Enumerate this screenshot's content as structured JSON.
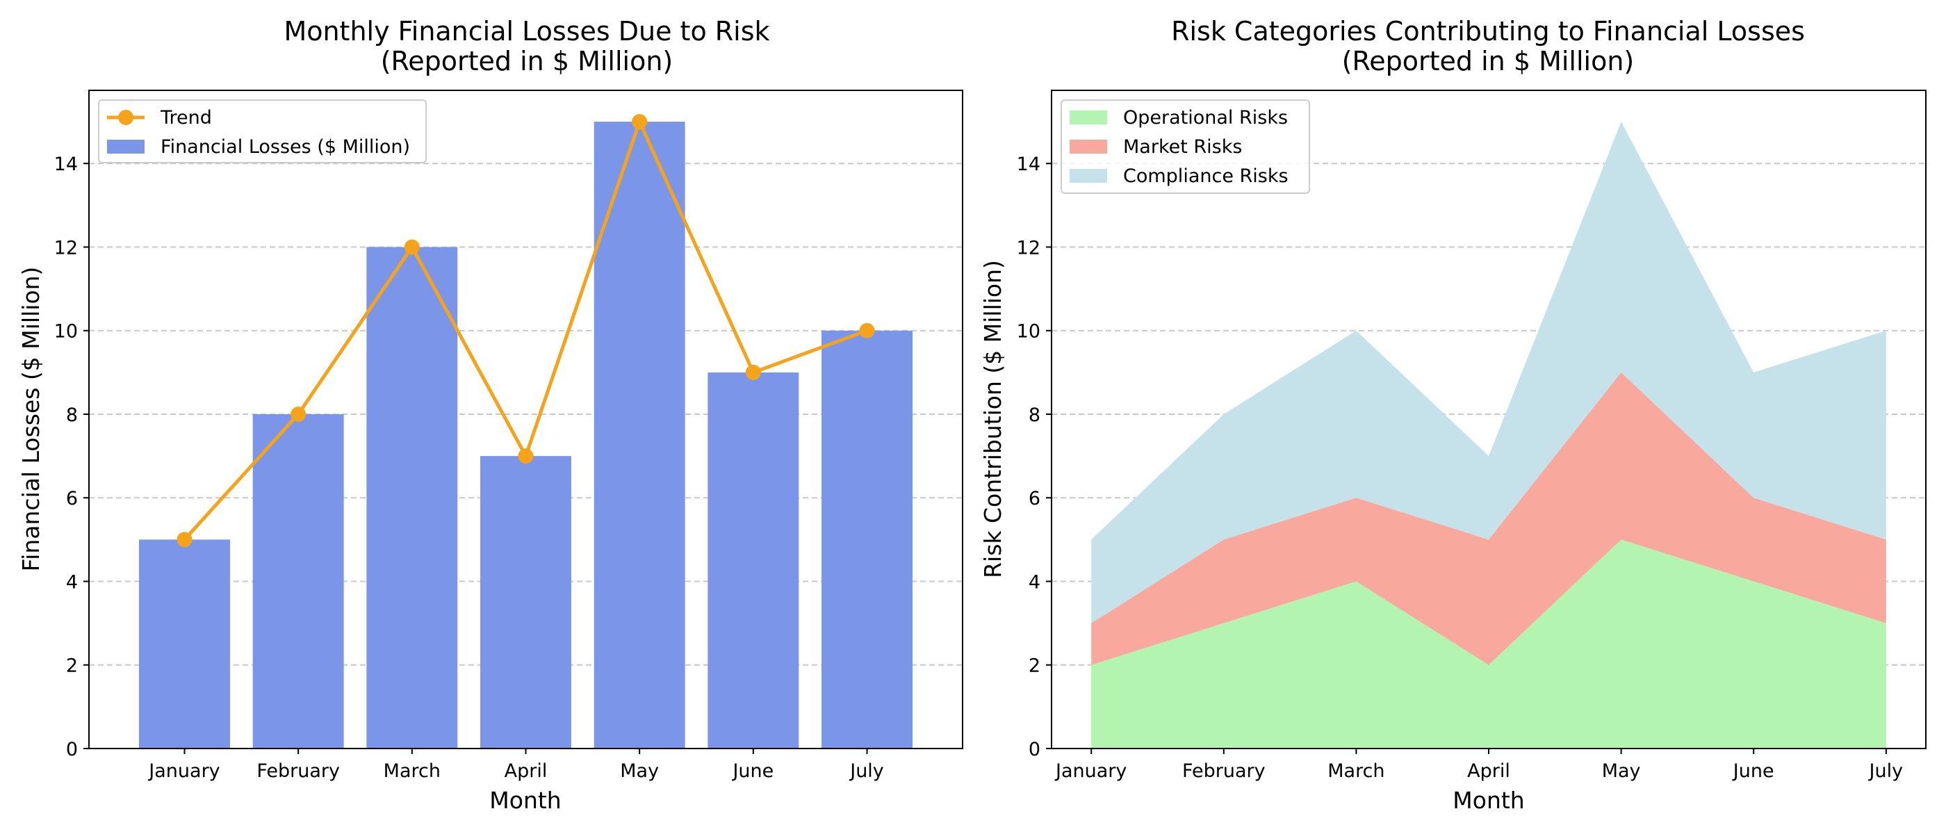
{
  "figure": {
    "background": "#ffffff"
  },
  "chart_data": [
    {
      "type": "bar",
      "title_line1": "Monthly Financial Losses Due to Risk",
      "title_line2": "(Reported in $ Million)",
      "xlabel": "Month",
      "ylabel": "Financial Losses ($ Million)",
      "categories": [
        "January",
        "February",
        "March",
        "April",
        "May",
        "June",
        "July"
      ],
      "ylim": [
        0,
        15.75
      ],
      "yticks": [
        0,
        2,
        4,
        6,
        8,
        10,
        12,
        14
      ],
      "grid": "y-dashed",
      "legend_position": "upper-left",
      "series": [
        {
          "name": "Financial Losses ($ Million)",
          "kind": "bar",
          "color": "#7b96e8",
          "values": [
            5,
            8,
            12,
            7,
            15,
            9,
            10
          ]
        },
        {
          "name": "Trend",
          "kind": "line-marker",
          "color": "#f5a31a",
          "values": [
            5,
            8,
            12,
            7,
            15,
            9,
            10
          ]
        }
      ]
    },
    {
      "type": "area",
      "stacked": true,
      "title_line1": "Risk Categories Contributing to Financial Losses",
      "title_line2": "(Reported in $ Million)",
      "xlabel": "Month",
      "ylabel": "Risk Contribution ($ Million)",
      "categories": [
        "January",
        "February",
        "March",
        "April",
        "May",
        "June",
        "July"
      ],
      "ylim": [
        0,
        15.75
      ],
      "yticks": [
        0,
        2,
        4,
        6,
        8,
        10,
        12,
        14
      ],
      "grid": "y-dashed",
      "legend_position": "upper-left",
      "series": [
        {
          "name": "Operational Risks",
          "color": "#b2f4b0",
          "values": [
            2,
            3,
            4,
            2,
            5,
            4,
            3
          ]
        },
        {
          "name": "Market Risks",
          "color": "#f9a89d",
          "values": [
            1,
            2,
            2,
            3,
            4,
            2,
            2
          ]
        },
        {
          "name": "Compliance Risks",
          "color": "#c5e2eb",
          "values": [
            2,
            3,
            4,
            2,
            6,
            3,
            5
          ]
        }
      ]
    }
  ]
}
